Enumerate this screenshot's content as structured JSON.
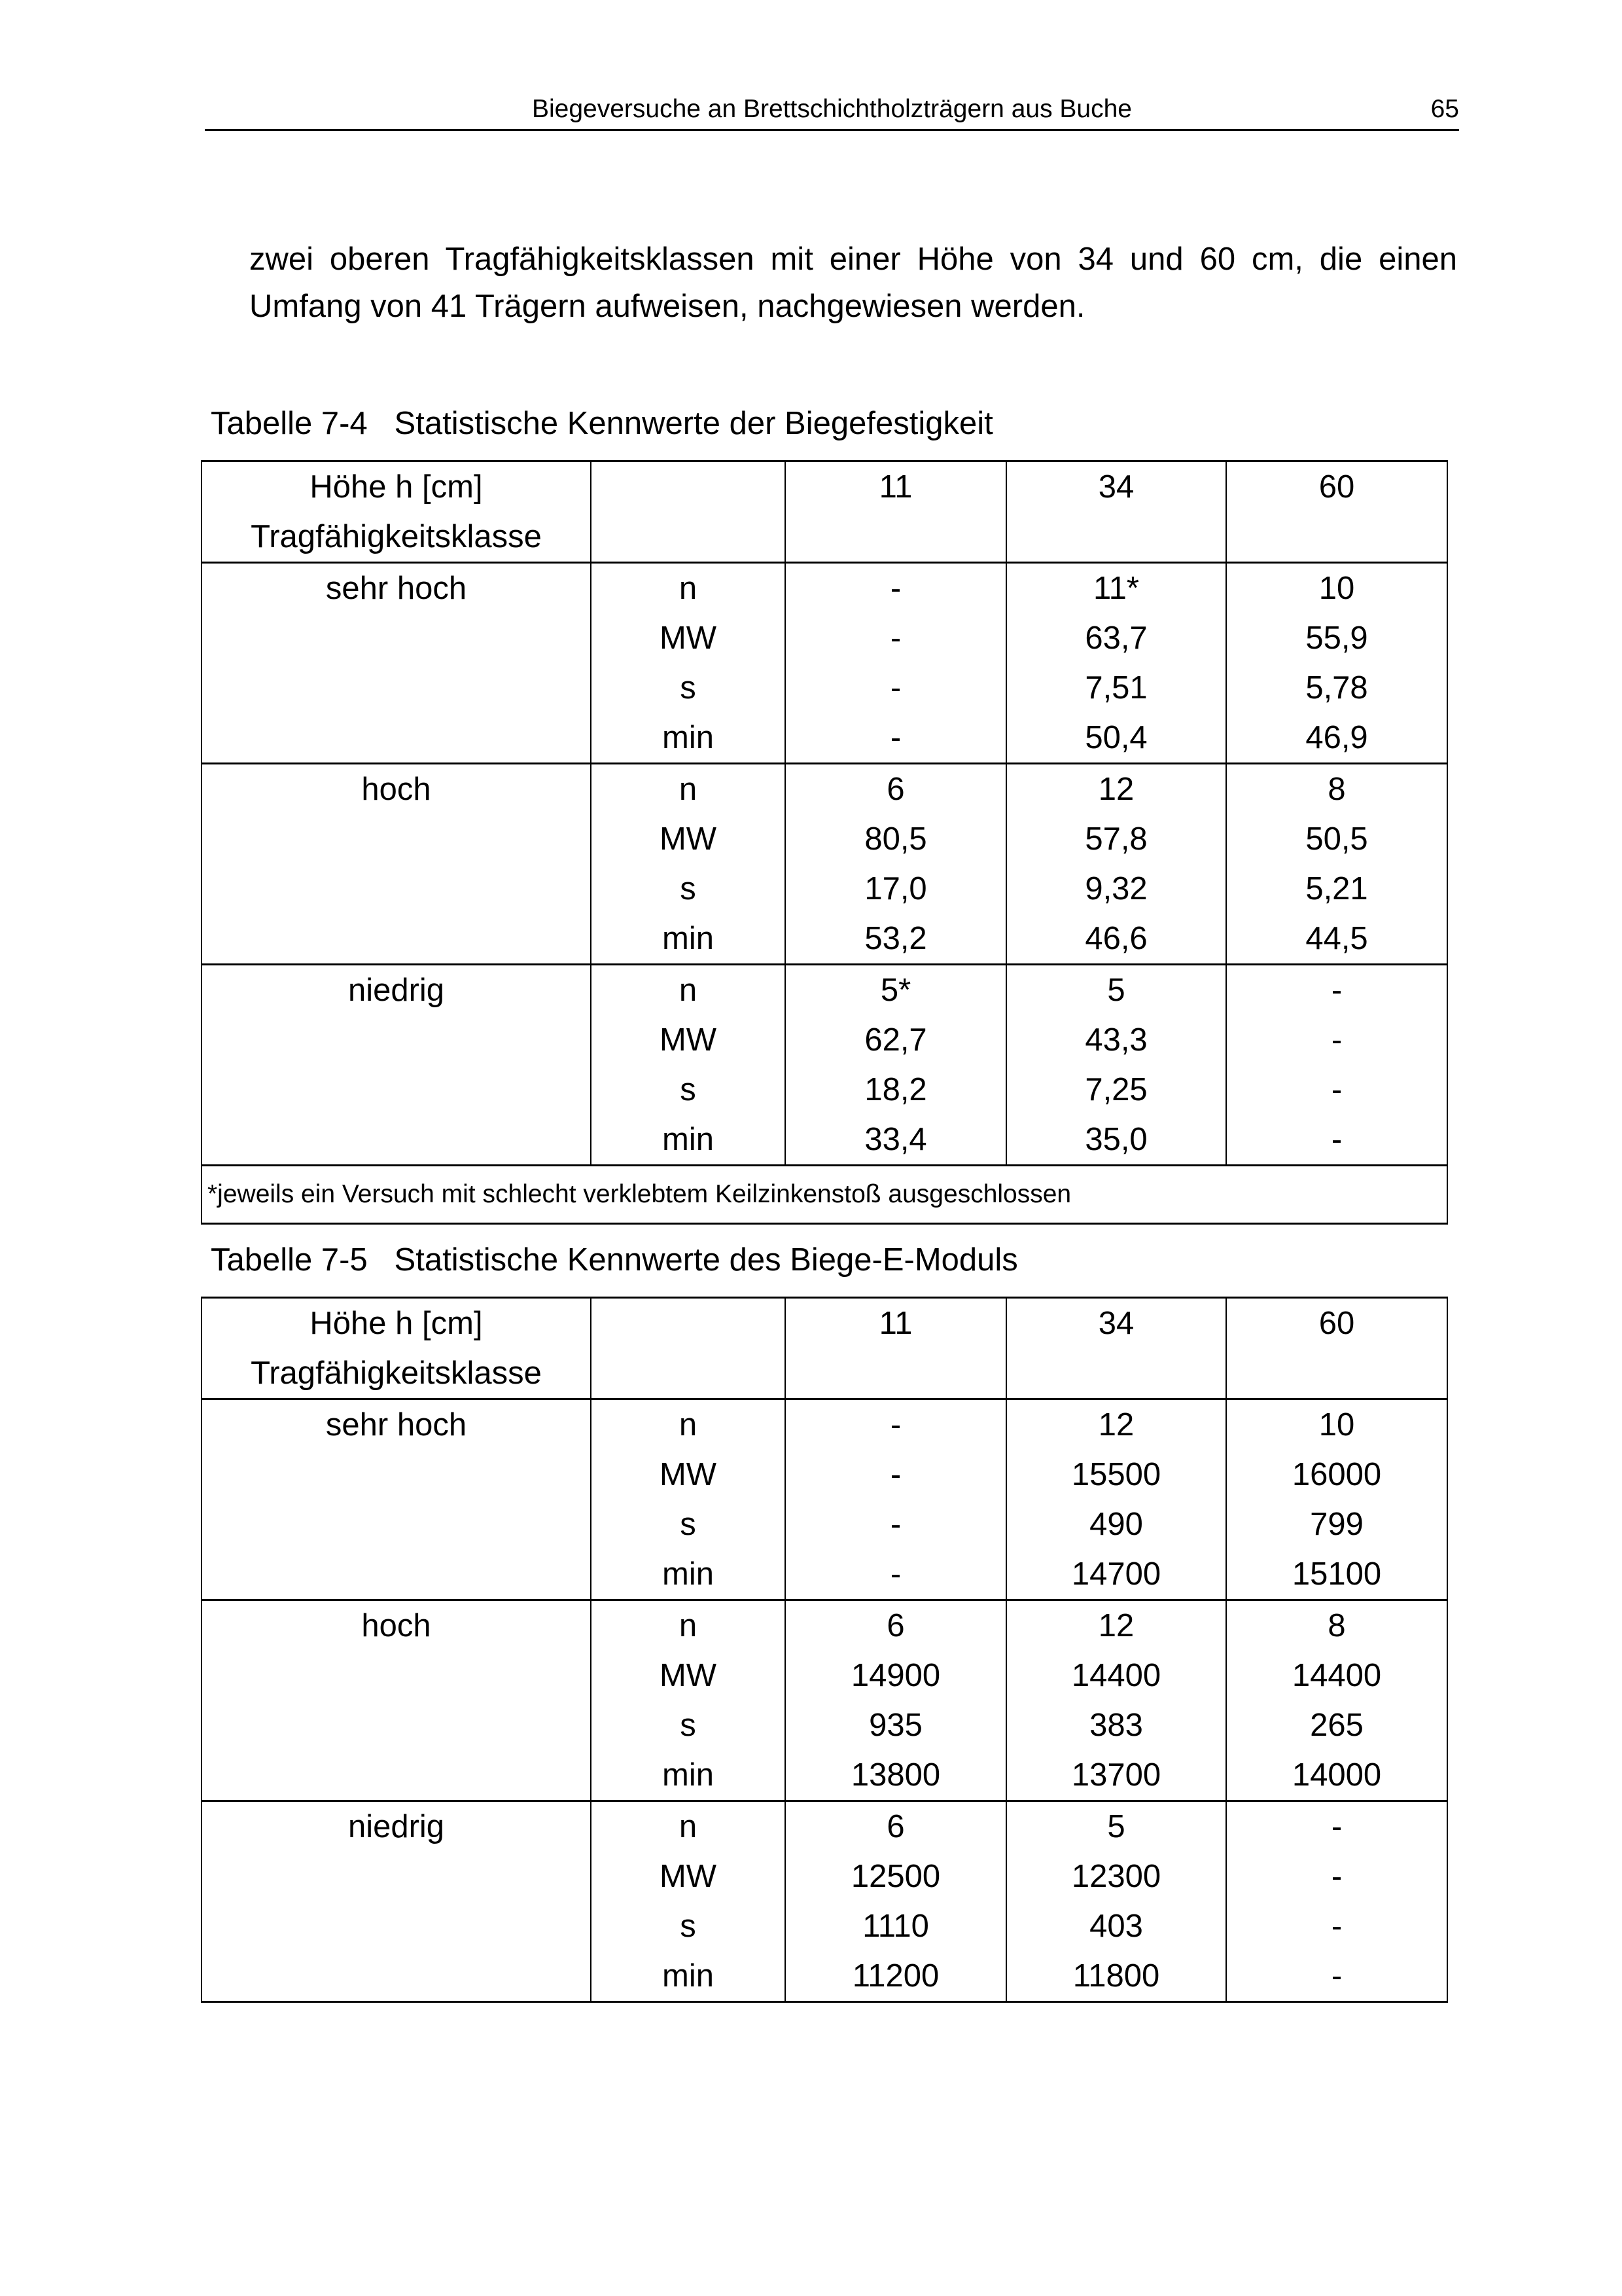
{
  "header": {
    "title": "Biegeversuche an Brettschichtholzträgern aus Buche",
    "page_number": "65"
  },
  "paragraph": "zwei oberen Tragfähigkeitsklassen mit einer Höhe von 34 und 60 cm, die einen Umfang von 41 Trägern aufweisen, nachgewiesen werden.",
  "tables": [
    {
      "caption": "Tabelle 7-4   Statistische Kennwerte der Biegefestigkeit",
      "header_lines": [
        "Höhe h [cm]",
        "Tragfähigkeitsklasse"
      ],
      "columns": [
        "11",
        "34",
        "60"
      ],
      "groups": [
        {
          "label": "sehr hoch",
          "stats": [
            "n",
            "MW",
            "s",
            "min"
          ],
          "values": [
            [
              "-",
              "11*",
              "10"
            ],
            [
              "-",
              "63,7",
              "55,9"
            ],
            [
              "-",
              "7,51",
              "5,78"
            ],
            [
              "-",
              "50,4",
              "46,9"
            ]
          ]
        },
        {
          "label": "hoch",
          "stats": [
            "n",
            "MW",
            "s",
            "min"
          ],
          "values": [
            [
              "6",
              "12",
              "8"
            ],
            [
              "80,5",
              "57,8",
              "50,5"
            ],
            [
              "17,0",
              "9,32",
              "5,21"
            ],
            [
              "53,2",
              "46,6",
              "44,5"
            ]
          ]
        },
        {
          "label": "niedrig",
          "stats": [
            "n",
            "MW",
            "s",
            "min"
          ],
          "values": [
            [
              "5*",
              "5",
              "-"
            ],
            [
              "62,7",
              "43,3",
              "-"
            ],
            [
              "18,2",
              "7,25",
              "-"
            ],
            [
              "33,4",
              "35,0",
              "-"
            ]
          ]
        }
      ],
      "footnote": "*jeweils ein Versuch mit schlecht verklebtem Keilzinkenstoß ausgeschlossen"
    },
    {
      "caption": "Tabelle 7-5   Statistische Kennwerte des Biege-E-Moduls",
      "header_lines": [
        "Höhe h [cm]",
        "Tragfähigkeitsklasse"
      ],
      "columns": [
        "11",
        "34",
        "60"
      ],
      "groups": [
        {
          "label": "sehr hoch",
          "stats": [
            "n",
            "MW",
            "s",
            "min"
          ],
          "values": [
            [
              "-",
              "12",
              "10"
            ],
            [
              "-",
              "15500",
              "16000"
            ],
            [
              "-",
              "490",
              "799"
            ],
            [
              "-",
              "14700",
              "15100"
            ]
          ]
        },
        {
          "label": "hoch",
          "stats": [
            "n",
            "MW",
            "s",
            "min"
          ],
          "values": [
            [
              "6",
              "12",
              "8"
            ],
            [
              "14900",
              "14400",
              "14400"
            ],
            [
              "935",
              "383",
              "265"
            ],
            [
              "13800",
              "13700",
              "14000"
            ]
          ]
        },
        {
          "label": "niedrig",
          "stats": [
            "n",
            "MW",
            "s",
            "min"
          ],
          "values": [
            [
              "6",
              "5",
              "-"
            ],
            [
              "12500",
              "12300",
              "-"
            ],
            [
              "1110",
              "403",
              "-"
            ],
            [
              "11200",
              "11800",
              "-"
            ]
          ]
        }
      ]
    }
  ]
}
